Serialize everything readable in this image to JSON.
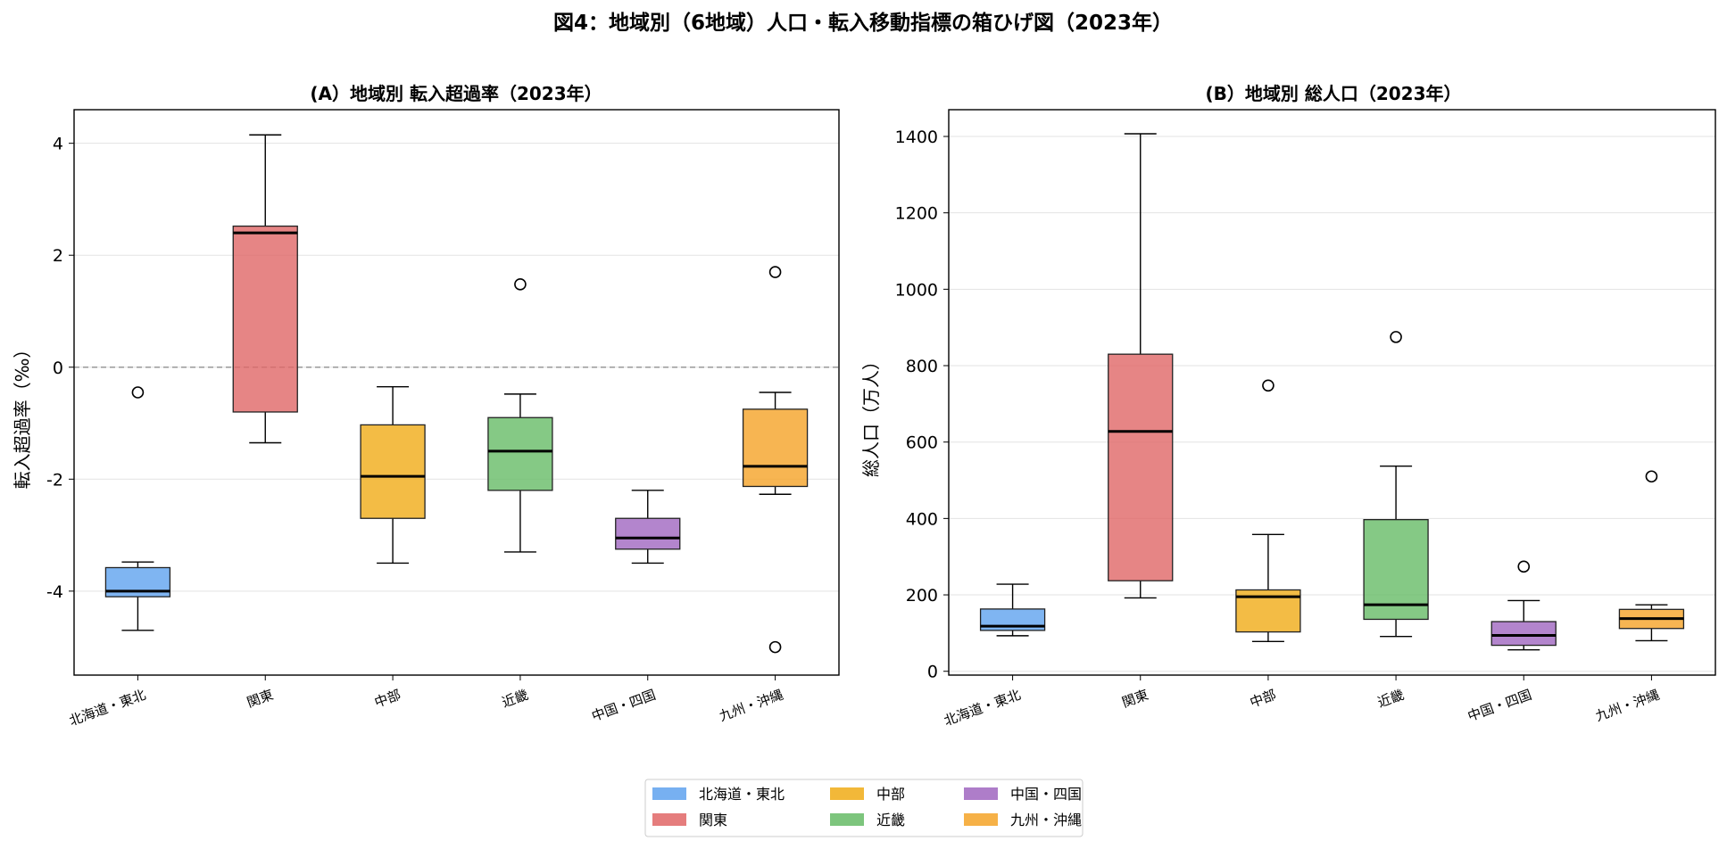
{
  "figure_title": "図4：地域別（6地域）人口・転入移動指標の箱ひげ図（2023年）",
  "legend": [
    {
      "label": "北海道・東北",
      "color": "#5fa2ef"
    },
    {
      "label": "関東",
      "color": "#e06666"
    },
    {
      "label": "中部",
      "color": "#f0ab16"
    },
    {
      "label": "近畿",
      "color": "#66bb66"
    },
    {
      "label": "中国・四国",
      "color": "#a066c0"
    },
    {
      "label": "九州・沖縄",
      "color": "#f5a327"
    }
  ],
  "chart_data": [
    {
      "type": "box",
      "title": "(A）地域別 転入超過率（2023年）",
      "xlabel": "",
      "ylabel": "転入超過率（‰）",
      "ylim": [
        -5.5,
        4.6
      ],
      "yticks": [
        4,
        2,
        0,
        -2,
        -4
      ],
      "ytick_labels": [
        "4",
        "2",
        "0",
        "-2",
        "-4"
      ],
      "reference_line": 0,
      "grid": "horizontal",
      "categories": [
        "北海道・東北",
        "関東",
        "中部",
        "近畿",
        "中国・四国",
        "九州・沖縄"
      ],
      "boxes": [
        {
          "whislo": -4.7,
          "q1": -4.1,
          "med": -4.0,
          "q3": -3.58,
          "whishi": -3.48,
          "fliers": [
            -0.45
          ]
        },
        {
          "whislo": -1.35,
          "q1": -0.8,
          "med": 2.4,
          "q3": 2.52,
          "whishi": 4.15,
          "fliers": []
        },
        {
          "whislo": -3.5,
          "q1": -2.7,
          "med": -1.95,
          "q3": -1.03,
          "whishi": -0.35,
          "fliers": []
        },
        {
          "whislo": -3.3,
          "q1": -2.2,
          "med": -1.5,
          "q3": -0.9,
          "whishi": -0.48,
          "fliers": [
            1.48
          ]
        },
        {
          "whislo": -3.5,
          "q1": -3.25,
          "med": -3.05,
          "q3": -2.7,
          "whishi": -2.2,
          "fliers": []
        },
        {
          "whislo": -2.27,
          "q1": -2.13,
          "med": -1.77,
          "q3": -0.75,
          "whishi": -0.45,
          "fliers": [
            1.7,
            -5.0
          ]
        }
      ]
    },
    {
      "type": "box",
      "title": "(B）地域別 総人口（2023年）",
      "xlabel": "",
      "ylabel": "総人口（万人）",
      "ylim": [
        -10,
        1470
      ],
      "yticks": [
        1400,
        1200,
        1000,
        800,
        600,
        400,
        200,
        0
      ],
      "ytick_labels": [
        "1400",
        "1200",
        "1000",
        "800",
        "600",
        "400",
        "200",
        "0"
      ],
      "grid": "horizontal",
      "categories": [
        "北海道・東北",
        "関東",
        "中部",
        "近畿",
        "中国・四国",
        "九州・沖縄"
      ],
      "boxes": [
        {
          "whislo": 93,
          "q1": 107,
          "med": 118,
          "q3": 163,
          "whishi": 228,
          "fliers": []
        },
        {
          "whislo": 192,
          "q1": 237,
          "med": 628,
          "q3": 830,
          "whishi": 1407,
          "fliers": []
        },
        {
          "whislo": 78,
          "q1": 103,
          "med": 195,
          "q3": 213,
          "whishi": 358,
          "fliers": [
            748
          ]
        },
        {
          "whislo": 91,
          "q1": 136,
          "med": 174,
          "q3": 397,
          "whishi": 537,
          "fliers": [
            875
          ]
        },
        {
          "whislo": 56,
          "q1": 68,
          "med": 94,
          "q3": 130,
          "whishi": 185,
          "fliers": [
            274
          ]
        },
        {
          "whislo": 80,
          "q1": 112,
          "med": 138,
          "q3": 162,
          "whishi": 174,
          "fliers": [
            510
          ]
        }
      ]
    }
  ]
}
